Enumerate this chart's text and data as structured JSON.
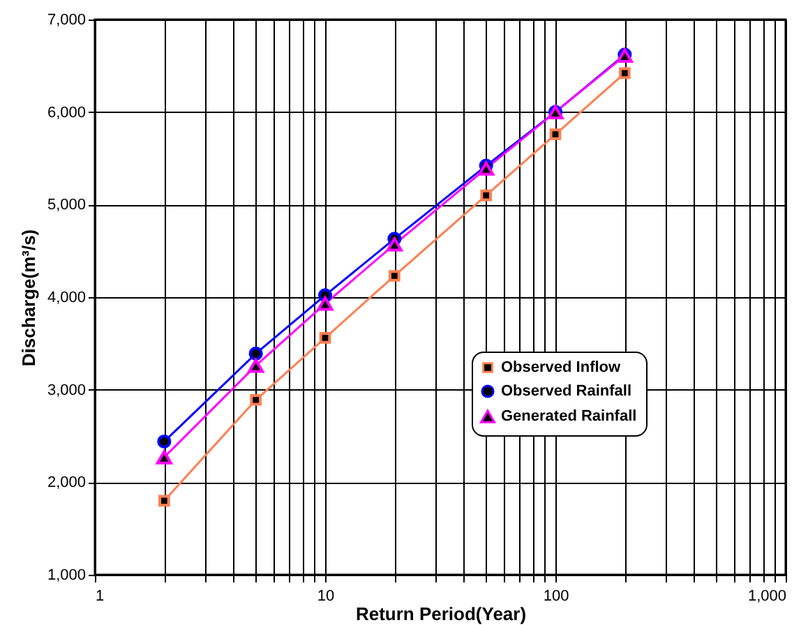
{
  "chart_data": {
    "type": "line",
    "xlabel": "Return Period(Year)",
    "ylabel": "Discharge(m³/s)",
    "log": "x",
    "x": [
      2,
      5,
      10,
      20,
      50,
      100,
      200
    ],
    "series": [
      {
        "name": "Observed Inflow",
        "color": "#ff7f50",
        "marker": "square",
        "values": [
          1800,
          2890,
          3560,
          4230,
          5100,
          5760,
          6420
        ]
      },
      {
        "name": "Observed Rainfall",
        "color": "#0000ff",
        "marker": "circle",
        "values": [
          2440,
          3390,
          4020,
          4630,
          5420,
          6000,
          6620
        ]
      },
      {
        "name": "Generated Rainfall",
        "color": "#ff00ff",
        "marker": "triangle",
        "values": [
          2270,
          3260,
          3930,
          4570,
          5390,
          6000,
          6610
        ]
      }
    ],
    "xlim": [
      1,
      1000
    ],
    "xticks": [
      1,
      {
        "value": 2,
        "label": null
      },
      {
        "value": 3,
        "label": null
      },
      {
        "value": 4,
        "label": null
      },
      {
        "value": 5,
        "label": null
      },
      {
        "value": 6,
        "label": null
      },
      {
        "value": 7,
        "label": null
      },
      {
        "value": 8,
        "label": null
      },
      {
        "value": 9,
        "label": null
      },
      10,
      {
        "value": 20,
        "label": null
      },
      {
        "value": 30,
        "label": null
      },
      {
        "value": 40,
        "label": null
      },
      {
        "value": 50,
        "label": null
      },
      {
        "value": 60,
        "label": null
      },
      {
        "value": 70,
        "label": null
      },
      {
        "value": 80,
        "label": null
      },
      {
        "value": 90,
        "label": null
      },
      100,
      {
        "value": 200,
        "label": null
      },
      {
        "value": 300,
        "label": null
      },
      {
        "value": 400,
        "label": null
      },
      {
        "value": 500,
        "label": null
      },
      {
        "value": 600,
        "label": null
      },
      {
        "value": 700,
        "label": null
      },
      {
        "value": 800,
        "label": null
      },
      {
        "value": 900,
        "label": null
      },
      {
        "value": 1000,
        "label": "1,000"
      }
    ],
    "ylim": [
      1000,
      7000
    ],
    "yticks": [
      {
        "value": 1000,
        "label": "1,000"
      },
      {
        "value": 2000,
        "label": "2,000"
      },
      {
        "value": 3000,
        "label": "3,000"
      },
      {
        "value": 4000,
        "label": "4,000"
      },
      {
        "value": 5000,
        "label": "5,000"
      },
      {
        "value": 6000,
        "label": "6,000"
      },
      {
        "value": 7000,
        "label": "7,000"
      }
    ],
    "grid": true,
    "legend": "right",
    "line_style": "solid"
  }
}
